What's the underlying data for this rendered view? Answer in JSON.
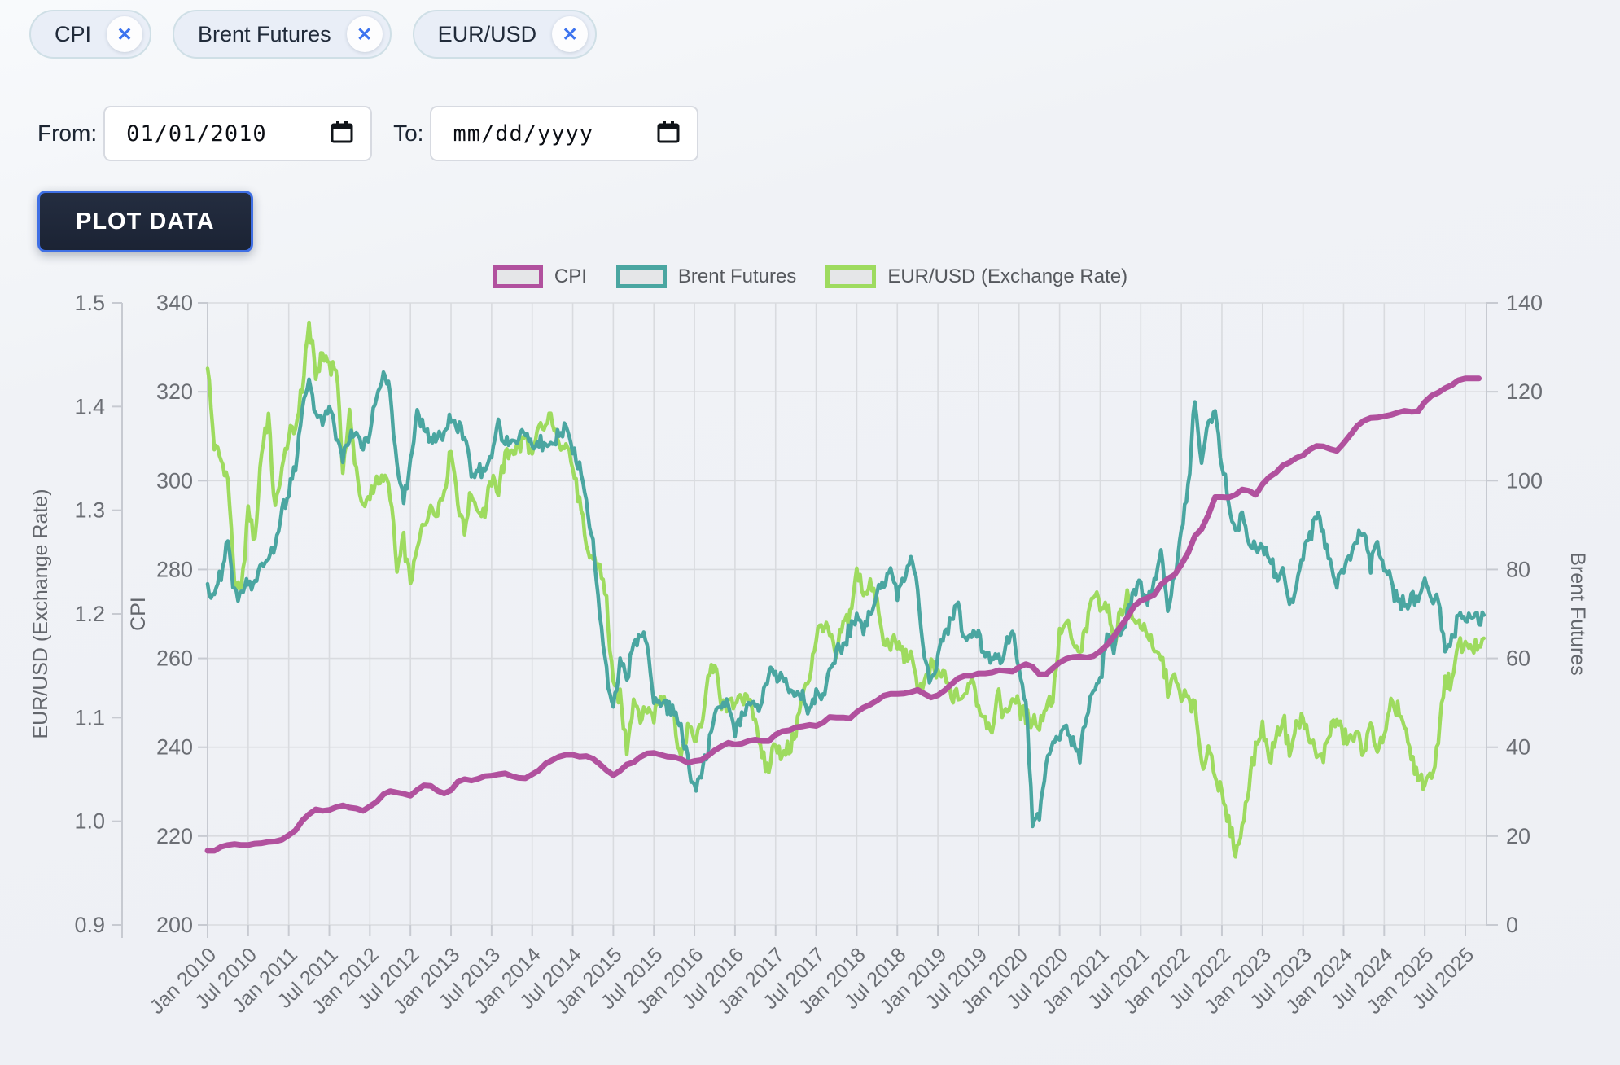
{
  "filters": {
    "remove_glyph": "✕",
    "chips": [
      {
        "label": "CPI"
      },
      {
        "label": "Brent Futures"
      },
      {
        "label": "EUR/USD"
      }
    ]
  },
  "date_range": {
    "from_label": "From:",
    "from_value": "01/01/2010",
    "to_label": "To:",
    "to_placeholder": "mm/dd/yyyy"
  },
  "plot_button": {
    "label": "PLOT DATA"
  },
  "chart_data": {
    "type": "line",
    "x_start": "Jan 2010",
    "x_end": "Jul 2025",
    "x_monthly_points": 187,
    "x_tick_labels": [
      "Jan 2010",
      "Jul 2010",
      "Jan 2011",
      "Jul 2011",
      "Jan 2012",
      "Jul 2012",
      "Jan 2013",
      "Jul 2013",
      "Jan 2014",
      "Jul 2014",
      "Jan 2015",
      "Jul 2015",
      "Jan 2016",
      "Jul 2016",
      "Jan 2017",
      "Jul 2017",
      "Jan 2018",
      "Jul 2018",
      "Jan 2019",
      "Jul 2019",
      "Jan 2020",
      "Jul 2020",
      "Jan 2021",
      "Jul 2021",
      "Jan 2022",
      "Jul 2022",
      "Jan 2023",
      "Jul 2023",
      "Jan 2024",
      "Jul 2024",
      "Jan 2025",
      "Jul 2025"
    ],
    "grid": true,
    "legend_position": "top",
    "axes": {
      "eur_usd": {
        "title": "EUR/USD (Exchange Rate)",
        "side": "far-left",
        "min": 0.9,
        "max": 1.5,
        "ticks": [
          0.9,
          1.0,
          1.1,
          1.2,
          1.3,
          1.4,
          1.5
        ]
      },
      "cpi": {
        "title": "CPI",
        "side": "left",
        "min": 200,
        "max": 340,
        "ticks": [
          200,
          220,
          240,
          260,
          280,
          300,
          320,
          340
        ]
      },
      "brent": {
        "title": "Brent Futures",
        "side": "right",
        "min": 0,
        "max": 140,
        "ticks": [
          0,
          20,
          40,
          60,
          80,
          100,
          120,
          140
        ]
      }
    },
    "legend": [
      {
        "label": "CPI",
        "color": "#b1519e"
      },
      {
        "label": "Brent Futures",
        "color": "#4aa6a1"
      },
      {
        "label": "EUR/USD (Exchange Rate)",
        "color": "#9edb5f"
      }
    ],
    "series": [
      {
        "name": "CPI",
        "axis": "cpi",
        "color": "#b1519e",
        "style": "smooth-monthly",
        "values": [
          216.7,
          216.7,
          217.6,
          218.0,
          218.2,
          218.0,
          218.0,
          218.3,
          218.4,
          218.7,
          218.8,
          219.2,
          220.2,
          221.3,
          223.5,
          224.9,
          226.0,
          225.7,
          225.9,
          226.5,
          226.9,
          226.4,
          226.2,
          225.7,
          226.7,
          227.7,
          229.4,
          230.1,
          229.8,
          229.5,
          229.1,
          230.4,
          231.4,
          231.3,
          230.2,
          229.6,
          230.3,
          232.2,
          232.8,
          232.5,
          232.9,
          233.5,
          233.6,
          233.9,
          234.1,
          233.5,
          233.1,
          233.0,
          233.9,
          234.8,
          236.3,
          237.1,
          237.9,
          238.3,
          238.3,
          237.9,
          238.0,
          237.4,
          236.2,
          234.8,
          233.7,
          234.7,
          236.1,
          236.6,
          237.8,
          238.6,
          238.7,
          238.3,
          237.9,
          237.8,
          237.3,
          236.5,
          236.9,
          237.1,
          238.1,
          239.3,
          240.2,
          241.0,
          240.6,
          240.8,
          241.4,
          241.7,
          241.4,
          241.4,
          242.8,
          243.6,
          243.8,
          244.5,
          244.7,
          245.0,
          244.8,
          245.5,
          246.8,
          246.7,
          246.7,
          246.5,
          247.9,
          248.9,
          249.6,
          250.5,
          251.6,
          252.0,
          252.0,
          252.1,
          252.4,
          252.9,
          252.0,
          251.2,
          251.7,
          252.8,
          254.2,
          255.5,
          256.1,
          256.1,
          256.6,
          256.6,
          256.8,
          257.3,
          257.2,
          257.0,
          258.0,
          258.7,
          258.1,
          256.4,
          256.4,
          257.8,
          259.1,
          259.9,
          260.3,
          260.4,
          260.2,
          260.5,
          261.6,
          263.0,
          264.9,
          267.1,
          269.2,
          271.7,
          273.0,
          273.6,
          274.3,
          276.6,
          277.9,
          278.8,
          281.1,
          283.7,
          287.5,
          289.1,
          292.3,
          296.3,
          296.3,
          296.2,
          296.8,
          298.0,
          297.7,
          296.8,
          299.2,
          300.8,
          301.8,
          303.4,
          304.1,
          305.1,
          305.7,
          307.0,
          307.8,
          307.7,
          307.1,
          306.7,
          308.4,
          310.3,
          312.3,
          313.5,
          314.1,
          314.2,
          314.5,
          314.8,
          315.3,
          315.7,
          315.5,
          315.6,
          317.7,
          319.1,
          319.8,
          320.8,
          321.5,
          322.6,
          323.0
        ]
      },
      {
        "name": "Brent Futures",
        "axis": "brent",
        "color": "#4aa6a1",
        "style": "noisy-daily",
        "values": [
          76,
          74,
          79,
          86,
          74,
          75,
          77,
          76,
          81,
          83,
          85,
          93,
          97,
          104,
          115,
          124,
          115,
          112,
          117,
          110,
          105,
          109,
          110,
          107,
          111,
          120,
          124,
          120,
          103,
          95,
          105,
          114,
          112,
          109,
          110,
          111,
          115,
          112,
          110,
          102,
          102,
          102,
          107,
          114,
          108,
          109,
          110,
          111,
          107,
          109,
          107,
          108,
          110,
          112,
          106,
          103,
          95,
          86,
          70,
          57,
          48,
          60,
          55,
          65,
          65,
          63,
          52,
          50,
          48,
          49,
          45,
          37,
          30,
          33,
          40,
          47,
          50,
          50,
          43,
          47,
          49,
          48,
          50,
          57,
          56,
          56,
          53,
          52,
          51,
          48,
          52,
          52,
          57,
          61,
          63,
          67,
          69,
          66,
          70,
          75,
          77,
          79,
          74,
          77,
          83,
          75,
          59,
          54,
          61,
          66,
          68,
          72,
          64,
          66,
          65,
          60,
          61,
          60,
          62,
          66,
          58,
          50,
          23,
          25,
          35,
          41,
          43,
          45,
          41,
          38,
          48,
          52,
          55,
          66,
          63,
          67,
          69,
          75,
          76,
          73,
          78,
          84,
          70,
          78,
          89,
          98,
          118,
          105,
          113,
          115,
          104,
          95,
          88,
          93,
          87,
          84,
          85,
          83,
          78,
          80,
          73,
          75,
          84,
          87,
          93,
          88,
          81,
          77,
          80,
          83,
          87,
          88,
          81,
          86,
          80,
          77,
          72,
          73,
          73,
          74,
          77,
          73,
          73,
          63,
          64,
          69,
          69
        ]
      },
      {
        "name": "EUR/USD (Exchange Rate)",
        "axis": "eur_usd",
        "color": "#9edb5f",
        "style": "noisy-daily",
        "values": [
          1.44,
          1.36,
          1.35,
          1.33,
          1.23,
          1.22,
          1.3,
          1.27,
          1.36,
          1.39,
          1.3,
          1.34,
          1.37,
          1.38,
          1.42,
          1.48,
          1.43,
          1.45,
          1.44,
          1.44,
          1.34,
          1.39,
          1.34,
          1.3,
          1.31,
          1.33,
          1.33,
          1.32,
          1.24,
          1.27,
          1.23,
          1.26,
          1.29,
          1.3,
          1.3,
          1.32,
          1.36,
          1.31,
          1.28,
          1.32,
          1.3,
          1.3,
          1.33,
          1.32,
          1.35,
          1.36,
          1.36,
          1.37,
          1.35,
          1.38,
          1.38,
          1.39,
          1.36,
          1.37,
          1.34,
          1.31,
          1.26,
          1.25,
          1.25,
          1.21,
          1.13,
          1.12,
          1.07,
          1.12,
          1.1,
          1.11,
          1.1,
          1.12,
          1.12,
          1.1,
          1.06,
          1.09,
          1.08,
          1.09,
          1.14,
          1.15,
          1.11,
          1.11,
          1.12,
          1.11,
          1.12,
          1.1,
          1.06,
          1.05,
          1.08,
          1.06,
          1.07,
          1.09,
          1.12,
          1.14,
          1.18,
          1.19,
          1.18,
          1.16,
          1.19,
          1.2,
          1.24,
          1.22,
          1.23,
          1.21,
          1.17,
          1.17,
          1.17,
          1.16,
          1.16,
          1.13,
          1.13,
          1.15,
          1.14,
          1.14,
          1.12,
          1.12,
          1.12,
          1.14,
          1.11,
          1.1,
          1.09,
          1.12,
          1.1,
          1.12,
          1.11,
          1.1,
          1.1,
          1.09,
          1.11,
          1.12,
          1.18,
          1.19,
          1.17,
          1.16,
          1.19,
          1.22,
          1.21,
          1.21,
          1.17,
          1.2,
          1.22,
          1.19,
          1.19,
          1.18,
          1.16,
          1.16,
          1.13,
          1.14,
          1.12,
          1.12,
          1.11,
          1.05,
          1.07,
          1.05,
          1.02,
          1.0,
          0.97,
          0.99,
          1.04,
          1.07,
          1.09,
          1.06,
          1.08,
          1.1,
          1.07,
          1.09,
          1.1,
          1.08,
          1.06,
          1.06,
          1.09,
          1.1,
          1.08,
          1.08,
          1.08,
          1.07,
          1.09,
          1.07,
          1.08,
          1.11,
          1.11,
          1.09,
          1.06,
          1.04,
          1.04,
          1.04,
          1.08,
          1.14,
          1.13,
          1.17,
          1.17
        ]
      }
    ]
  }
}
